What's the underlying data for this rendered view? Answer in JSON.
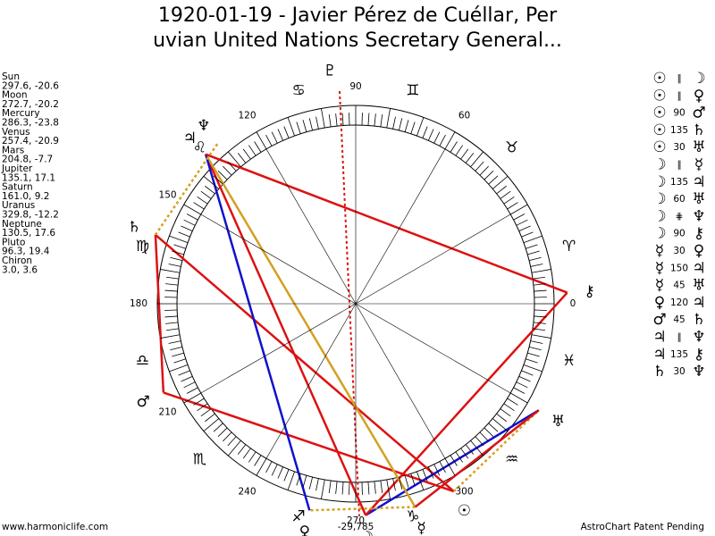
{
  "header": {
    "title_lines": [
      "1920-01-19 - Javier Pérez de Cuéllar, Per",
      "uvian United Nations Secretary General..."
    ]
  },
  "planets": [
    {
      "name": "Sun",
      "glyph": "☉",
      "position": "297.6, -20.6"
    },
    {
      "name": "Moon",
      "glyph": "☽",
      "position": "272.7, -20.2"
    },
    {
      "name": "Mercury",
      "glyph": "☿",
      "position": "286.3, -23.8"
    },
    {
      "name": "Venus",
      "glyph": "♀",
      "position": "257.4, -20.9"
    },
    {
      "name": "Mars",
      "glyph": "♂",
      "position": "204.8, -7.7"
    },
    {
      "name": "Jupiter",
      "glyph": "♃",
      "position": "135.1, 17.1"
    },
    {
      "name": "Saturn",
      "glyph": "♄",
      "position": "161.0, 9.2"
    },
    {
      "name": "Uranus",
      "glyph": "♅",
      "position": "329.8, -12.2"
    },
    {
      "name": "Neptune",
      "glyph": "♆",
      "position": "130.5, 17.6"
    },
    {
      "name": "Pluto",
      "glyph": "♇",
      "position": "96.3, 19.4"
    },
    {
      "name": "Chiron",
      "glyph": "⚷",
      "position": "3.0, 3.6"
    }
  ],
  "aspects": [
    {
      "a": "☉",
      "aspect": "∥",
      "b": "☽"
    },
    {
      "a": "☉",
      "aspect": "∥",
      "b": "♀"
    },
    {
      "a": "☉",
      "aspect": "90",
      "b": "♂",
      "color": "#dd1111"
    },
    {
      "a": "☉",
      "aspect": "135",
      "b": "♄",
      "color": "#dd1111"
    },
    {
      "a": "☉",
      "aspect": "30",
      "b": "♅",
      "color": "#d4a020",
      "style": "dotted"
    },
    {
      "a": "☽",
      "aspect": "∥",
      "b": "☿"
    },
    {
      "a": "☽",
      "aspect": "135",
      "b": "♃",
      "color": "#dd1111"
    },
    {
      "a": "☽",
      "aspect": "60",
      "b": "♅",
      "color": "#1111cc"
    },
    {
      "a": "☽",
      "aspect": "⋕",
      "b": "♆"
    },
    {
      "a": "☽",
      "aspect": "90",
      "b": "⚷",
      "color": "#dd1111"
    },
    {
      "a": "☿",
      "aspect": "30",
      "b": "♀",
      "color": "#d4a020",
      "style": "dotted"
    },
    {
      "a": "☿",
      "aspect": "150",
      "b": "♃",
      "color": "#d4a020"
    },
    {
      "a": "☿",
      "aspect": "45",
      "b": "♅",
      "color": "#dd1111"
    },
    {
      "a": "♀",
      "aspect": "120",
      "b": "♃",
      "color": "#1111cc"
    },
    {
      "a": "♂",
      "aspect": "45",
      "b": "♄",
      "color": "#dd1111"
    },
    {
      "a": "♃",
      "aspect": "∥",
      "b": "♆"
    },
    {
      "a": "♃",
      "aspect": "135",
      "b": "⚷",
      "color": "#dd1111"
    },
    {
      "a": "♄",
      "aspect": "30",
      "b": "♆",
      "color": "#d4a020",
      "style": "dotted"
    }
  ],
  "wheel": {
    "zodiac": [
      "♈",
      "♉",
      "♊",
      "♋",
      "♌",
      "♍",
      "♎",
      "♏",
      "♐",
      "♑",
      "♒",
      "♓"
    ],
    "degree_labels": [
      0,
      60,
      90,
      120,
      150,
      180,
      210,
      240,
      270,
      300
    ],
    "bottom_note": "-29,785"
  },
  "footer": {
    "left": "www.harmoniclife.com",
    "right": "AstroChart Patent Pending"
  }
}
